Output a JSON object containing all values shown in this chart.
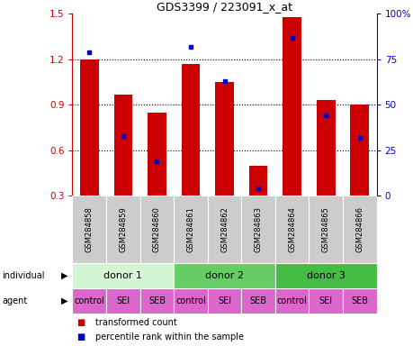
{
  "title": "GDS3399 / 223091_x_at",
  "samples": [
    "GSM284858",
    "GSM284859",
    "GSM284860",
    "GSM284861",
    "GSM284862",
    "GSM284863",
    "GSM284864",
    "GSM284865",
    "GSM284866"
  ],
  "transformed_count": [
    1.2,
    0.97,
    0.85,
    1.17,
    1.05,
    0.5,
    1.48,
    0.93,
    0.9
  ],
  "percentile_rank": [
    79,
    33,
    19,
    82,
    63,
    4,
    87,
    44,
    32
  ],
  "bar_color": "#cc0000",
  "dot_color": "#0000cc",
  "ylim_left": [
    0.3,
    1.5
  ],
  "ylim_right": [
    0,
    100
  ],
  "yticks_left": [
    0.3,
    0.6,
    0.9,
    1.2,
    1.5
  ],
  "yticks_right": [
    0,
    25,
    50,
    75,
    100
  ],
  "ytick_labels_right": [
    "0",
    "25",
    "50",
    "75",
    "100%"
  ],
  "individuals": [
    {
      "label": "donor 1",
      "start": 0,
      "end": 3,
      "color": "#d4f5d4"
    },
    {
      "label": "donor 2",
      "start": 3,
      "end": 6,
      "color": "#66cc66"
    },
    {
      "label": "donor 3",
      "start": 6,
      "end": 9,
      "color": "#44bb44"
    }
  ],
  "agents": [
    "control",
    "SEI",
    "SEB",
    "control",
    "SEI",
    "SEB",
    "control",
    "SEI",
    "SEB"
  ],
  "agent_color": "#dd66cc",
  "grid_color": "#000000",
  "left_axis_color": "#cc0000",
  "right_axis_color": "#0000cc",
  "tick_bg_color": "#cccccc",
  "legend_red_label": "transformed count",
  "legend_blue_label": "percentile rank within the sample"
}
